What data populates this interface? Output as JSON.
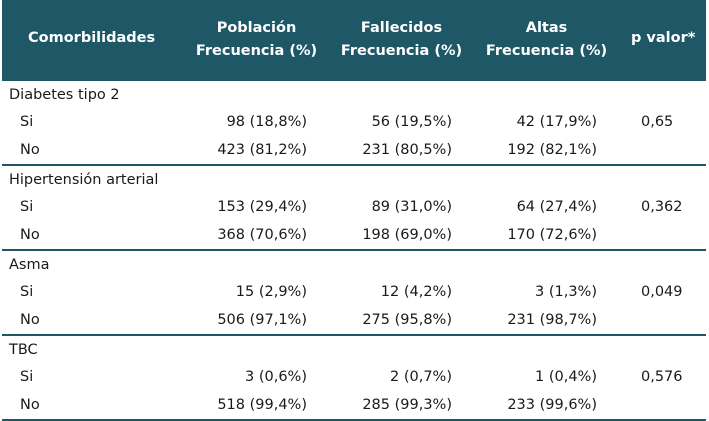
{
  "header": {
    "comorbidities": "Comorbilidades",
    "groups": [
      {
        "title": "Población",
        "sub": "Frecuencia (%)"
      },
      {
        "title": "Fallecidos",
        "sub": "Frecuencia (%)"
      },
      {
        "title": "Altas",
        "sub": "Frecuencia (%)"
      }
    ],
    "pvalue": "p valor*"
  },
  "sections": [
    {
      "name": "Diabetes tipo 2",
      "p": "0,65",
      "rows": [
        {
          "label": "Si",
          "values": [
            "98 (18,8%)",
            "56 (19,5%)",
            "42 (17,9%)"
          ]
        },
        {
          "label": "No",
          "values": [
            "423 (81,2%)",
            "231 (80,5%)",
            "192 (82,1%)"
          ]
        }
      ]
    },
    {
      "name": "Hipertensión arterial",
      "p": "0,362",
      "rows": [
        {
          "label": "Si",
          "values": [
            "153 (29,4%)",
            "89 (31,0%)",
            "64 (27,4%)"
          ]
        },
        {
          "label": "No",
          "values": [
            "368 (70,6%)",
            "198 (69,0%)",
            "170 (72,6%)"
          ]
        }
      ]
    },
    {
      "name": "Asma",
      "p": "0,049",
      "rows": [
        {
          "label": "Si",
          "values": [
            "15 (2,9%)",
            "12 (4,2%)",
            "3 (1,3%)"
          ]
        },
        {
          "label": "No",
          "values": [
            "506 (97,1%)",
            "275 (95,8%)",
            "231 (98,7%)"
          ]
        }
      ]
    },
    {
      "name": "TBC",
      "p": "0,576",
      "rows": [
        {
          "label": "Si",
          "values": [
            "3 (0,6%)",
            "2 (0,7%)",
            "1 (0,4%)"
          ]
        },
        {
          "label": "No",
          "values": [
            "518 (99,4%)",
            "285 (99,3%)",
            "233 (99,6%)"
          ]
        }
      ]
    }
  ],
  "colors": {
    "header_bg": "#1e5867",
    "header_text": "#ffffff",
    "rule": "#1e5867"
  }
}
